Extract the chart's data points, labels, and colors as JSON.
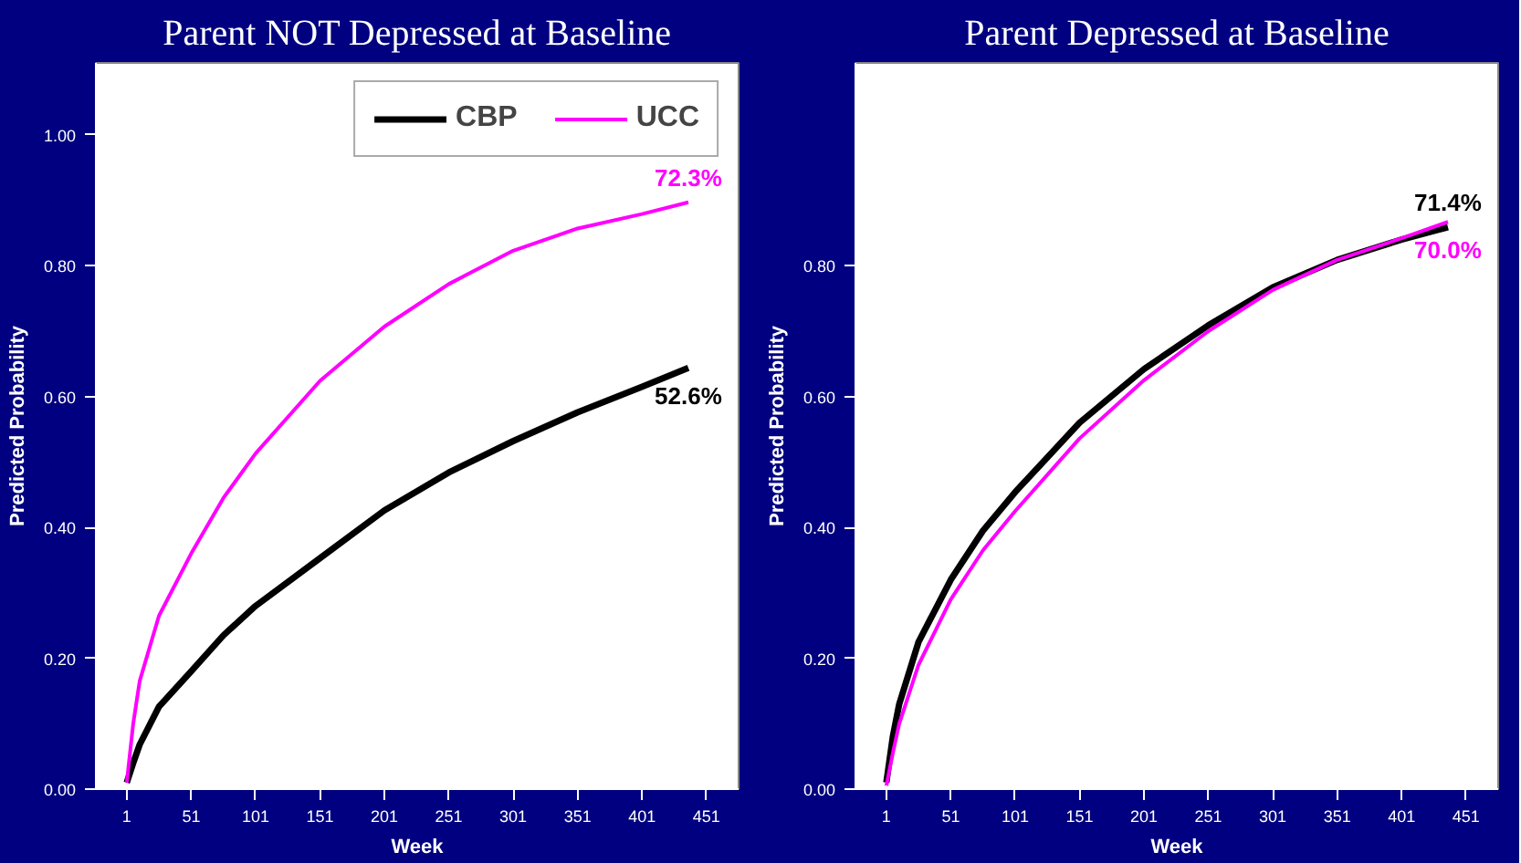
{
  "chart_data": [
    {
      "type": "line",
      "title": "Parent NOT Depressed at Baseline",
      "xlabel": "Week",
      "ylabel": "Predicted Probability",
      "xlim": [
        -23,
        476
      ],
      "ylim": [
        0,
        1.11
      ],
      "xticks": [
        1,
        51,
        101,
        151,
        201,
        251,
        301,
        351,
        401,
        451
      ],
      "yticks": [
        {
          "value": 0,
          "label": "0.00"
        },
        {
          "value": 0.2,
          "label": "0.20"
        },
        {
          "value": 0.4,
          "label": "0.40"
        },
        {
          "value": 0.6,
          "label": "0.60"
        },
        {
          "value": 0.8,
          "label": "0.80"
        },
        {
          "value": 1.0,
          "label": "1.00"
        }
      ],
      "x": [
        1,
        6,
        11,
        26,
        51,
        76,
        101,
        151,
        201,
        251,
        301,
        351,
        401,
        437
      ],
      "series": [
        {
          "name": "CBP",
          "color": "#000000",
          "values": [
            0.01,
            0.04,
            0.068,
            0.126,
            0.18,
            0.235,
            0.28,
            0.353,
            0.426,
            0.484,
            0.532,
            0.576,
            0.615,
            0.644
          ]
        },
        {
          "name": "UCC",
          "color": "#ff00ff",
          "values": [
            0.01,
            0.1,
            0.165,
            0.265,
            0.36,
            0.445,
            0.513,
            0.624,
            0.707,
            0.772,
            0.823,
            0.857,
            0.879,
            0.897
          ]
        }
      ],
      "annotations": [
        "52.6%",
        "72.3%"
      ],
      "legend": "top right",
      "grid": false
    },
    {
      "type": "line",
      "title": "Parent Depressed at Baseline",
      "xlabel": "Week",
      "ylabel": "Predicted Probability",
      "xlim": [
        -23,
        476
      ],
      "ylim": [
        0,
        1.11
      ],
      "xticks": [
        1,
        51,
        101,
        151,
        201,
        251,
        301,
        351,
        401,
        451
      ],
      "yticks": [
        {
          "value": 0,
          "label": "0.00"
        },
        {
          "value": 0.2,
          "label": "0.20"
        },
        {
          "value": 0.4,
          "label": "0.40"
        },
        {
          "value": 0.6,
          "label": "0.60"
        },
        {
          "value": 0.8,
          "label": "0.80"
        }
      ],
      "x": [
        1,
        6,
        11,
        26,
        51,
        76,
        101,
        151,
        201,
        251,
        301,
        351,
        401,
        437
      ],
      "series": [
        {
          "color": "#000000",
          "values": [
            0.01,
            0.08,
            0.13,
            0.225,
            0.32,
            0.395,
            0.454,
            0.56,
            0.642,
            0.709,
            0.767,
            0.809,
            0.84,
            0.859
          ]
        },
        {
          "color": "#ff00ff",
          "values": [
            0.005,
            0.055,
            0.1,
            0.19,
            0.29,
            0.365,
            0.425,
            0.536,
            0.625,
            0.7,
            0.763,
            0.809,
            0.842,
            0.867
          ]
        }
      ],
      "annotations": [
        "71.4%",
        "70.0%"
      ],
      "grid": false
    }
  ]
}
